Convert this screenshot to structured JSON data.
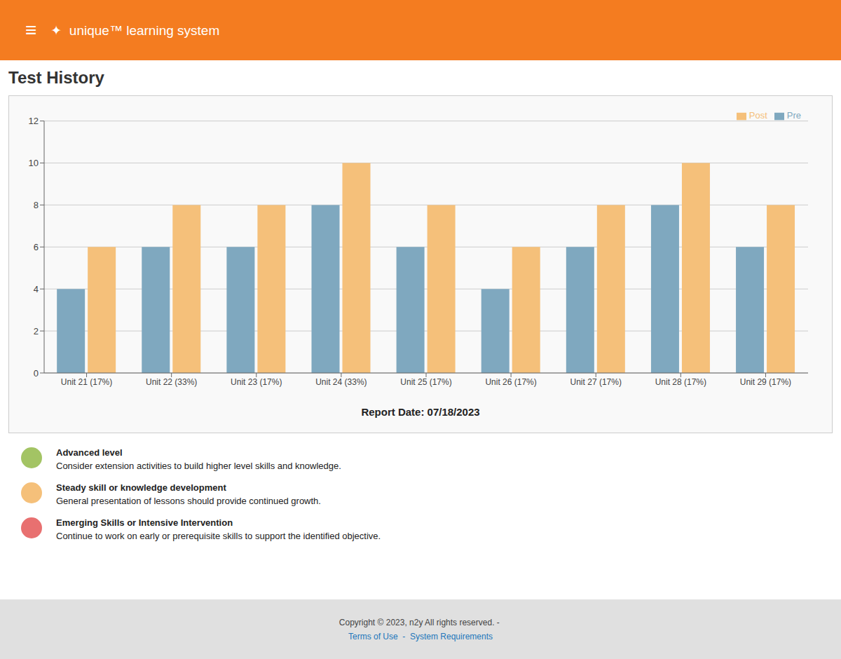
{
  "chart_data": {
    "type": "bar",
    "title": "Test History",
    "categories": [
      "Unit 21 (17%)",
      "Unit 22 (33%)",
      "Unit 23 (17%)",
      "Unit 24 (33%)",
      "Unit 25 (17%)",
      "Unit 26 (17%)",
      "Unit 27 (17%)",
      "Unit 28 (17%)",
      "Unit 29 (17%)"
    ],
    "series": [
      {
        "name": "Pre",
        "color": "#7fa8bf",
        "values": [
          4,
          6,
          6,
          8,
          6,
          4,
          6,
          8,
          6
        ]
      },
      {
        "name": "Post",
        "color": "#f5c07a",
        "values": [
          6,
          8,
          8,
          10,
          8,
          6,
          8,
          10,
          8
        ]
      }
    ],
    "ylim": [
      0,
      12
    ],
    "yticks": [
      0,
      2,
      4,
      6,
      8,
      10,
      12
    ],
    "grid": true,
    "legend": "upper right",
    "annotations": [
      {
        "text": "≡"
      },
      {
        "text": "✦  unique™ learning system"
      },
      {
        "text": "Report Date: 07/18/2023"
      },
      {
        "title": "Advanced level",
        "text": "Consider extension activities to build higher level skills and knowledge.",
        "color": "#a3c464"
      },
      {
        "title": "Steady skill or knowledge development",
        "text": "General presentation of lessons should provide continued growth.",
        "color": "#f5c07a"
      },
      {
        "title": "Emerging Skills or Intensive Intervention",
        "text": "Continue to work on early or prerequisite skills to support the identified objective.",
        "color": "#e87070"
      },
      {
        "text": "Copyright © 2023, n2y All rights reserved. - "
      },
      {
        "text": "Terms of Use  -  System Requirements"
      }
    ]
  }
}
